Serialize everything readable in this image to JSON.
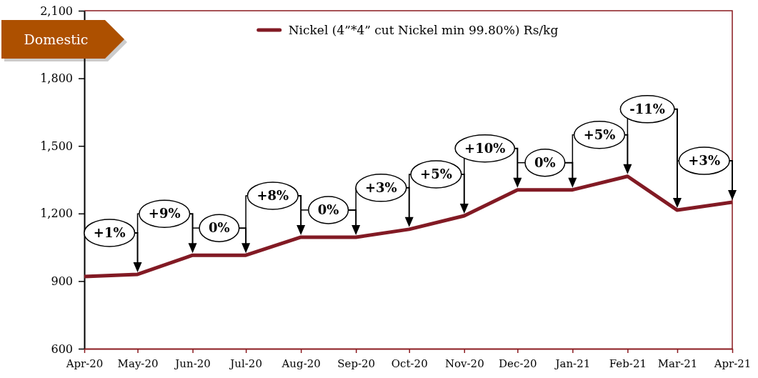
{
  "chart_data": {
    "type": "line",
    "title": "Domestic",
    "x": [
      "2020-04",
      "2020-05",
      "2020-06",
      "2020-07",
      "2020-08",
      "2020-09",
      "2020-10",
      "2020-11",
      "2020-12",
      "2021-01",
      "2021-02",
      "2021-03",
      "2021-04"
    ],
    "series": [
      {
        "name": "Nickel (4”*4” cut Nickel min 99.80%) Rs/kg",
        "color": "#821a24",
        "values": [
          920,
          930,
          1015,
          1015,
          1095,
          1095,
          1130,
          1190,
          1305,
          1305,
          1365,
          1215,
          1250
        ]
      }
    ],
    "xlim": [
      "2020-04",
      "2021-04"
    ],
    "xticks": [
      {
        "value": "2020-04",
        "label": "Apr-20"
      },
      {
        "value": "2020-05",
        "label": "May-20"
      },
      {
        "value": "2020-06",
        "label": "Jun-20"
      },
      {
        "value": "2020-07",
        "label": "Jul-20"
      },
      {
        "value": "2020-08",
        "label": "Aug-20"
      },
      {
        "value": "2020-09",
        "label": "Sep-20"
      },
      {
        "value": "2020-10",
        "label": "Oct-20"
      },
      {
        "value": "2020-11",
        "label": "Nov-20"
      },
      {
        "value": "2020-12",
        "label": "Dec-20"
      },
      {
        "value": "2021-01",
        "label": "Jan-21"
      },
      {
        "value": "2021-02",
        "label": "Feb-21"
      },
      {
        "value": "2021-03",
        "label": "Mar-21"
      },
      {
        "value": "2021-04",
        "label": "Apr-21"
      }
    ],
    "ylim": [
      600,
      2100
    ],
    "yticks": [
      600,
      900,
      {
        "value": 1200,
        "label": "1,200"
      },
      {
        "value": 1500,
        "label": "1,500"
      },
      {
        "value": 1800,
        "label": "1,800"
      },
      {
        "value": 2100,
        "label": "2,100"
      }
    ],
    "legend": "top",
    "annotations": [
      "+1%",
      "+9%",
      "0%",
      "+8%",
      "0%",
      "+3%",
      "+5%",
      "+10%",
      "0%",
      "+5%",
      "-11%",
      "+3%"
    ]
  }
}
